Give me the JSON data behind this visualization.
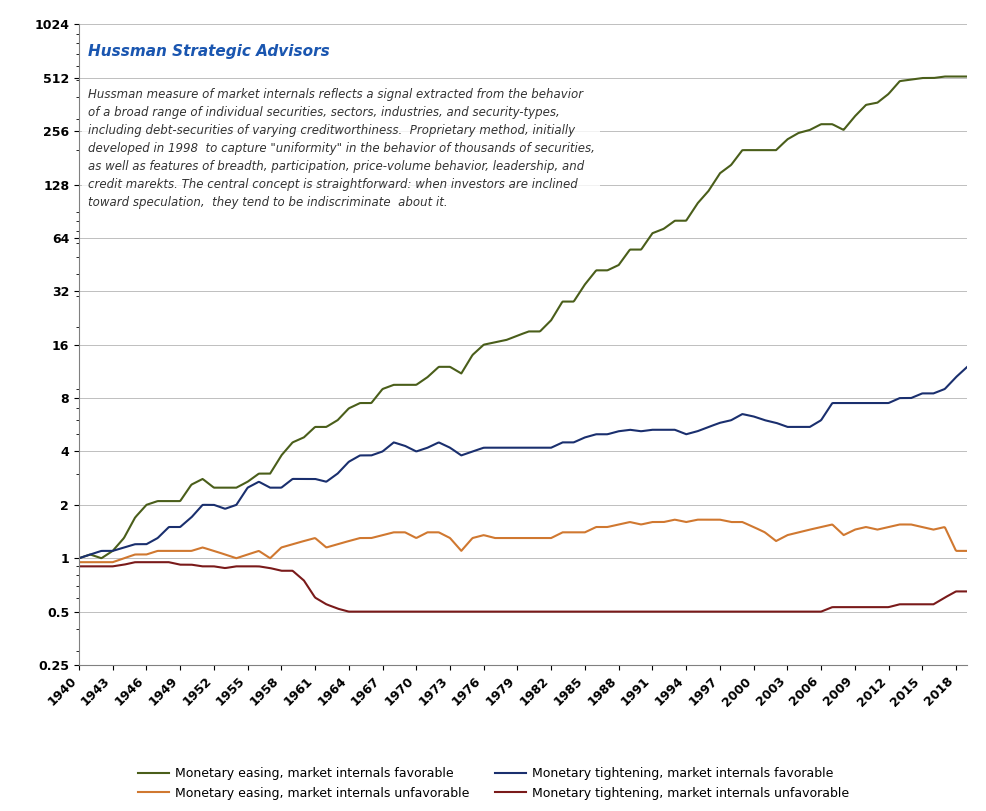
{
  "title": "Hussman Strategic Advisors",
  "annotation": "Hussman measure of market internals reflects a signal extracted from the behavior\nof a broad range of individual securities, sectors, industries, and security-types,\nincluding debt-securities of varying creditworthiness.  Proprietary method, initially\ndeveloped in 1998  to capture \"uniformity\" in the behavior of thousands of securities,\nas well as features of breadth, participation, price-volume behavior, leadership, and\ncredit marekts. The central concept is straightforward: when investors are inclined\ntoward speculation,  they tend to be indiscriminate  about it.",
  "colors": {
    "easing_favorable": "#4a5e1a",
    "easing_unfavorable": "#d07830",
    "tightening_favorable": "#1a2f6e",
    "tightening_unfavorable": "#7a1a1a"
  },
  "legend_labels": [
    "Monetary easing, market internals favorable",
    "Monetary easing, market internals unfavorable",
    "Monetary tightening, market internals favorable",
    "Monetary tightening, market internals unfavorable"
  ],
  "xmin": 1940,
  "xmax": 2019,
  "yticks": [
    0.25,
    0.5,
    1,
    2,
    4,
    8,
    16,
    32,
    64,
    128,
    256,
    512,
    1024
  ],
  "xticks": [
    1940,
    1943,
    1946,
    1949,
    1952,
    1955,
    1958,
    1961,
    1964,
    1967,
    1970,
    1973,
    1976,
    1979,
    1982,
    1985,
    1988,
    1991,
    1994,
    1997,
    2000,
    2003,
    2006,
    2009,
    2012,
    2015,
    2018
  ]
}
